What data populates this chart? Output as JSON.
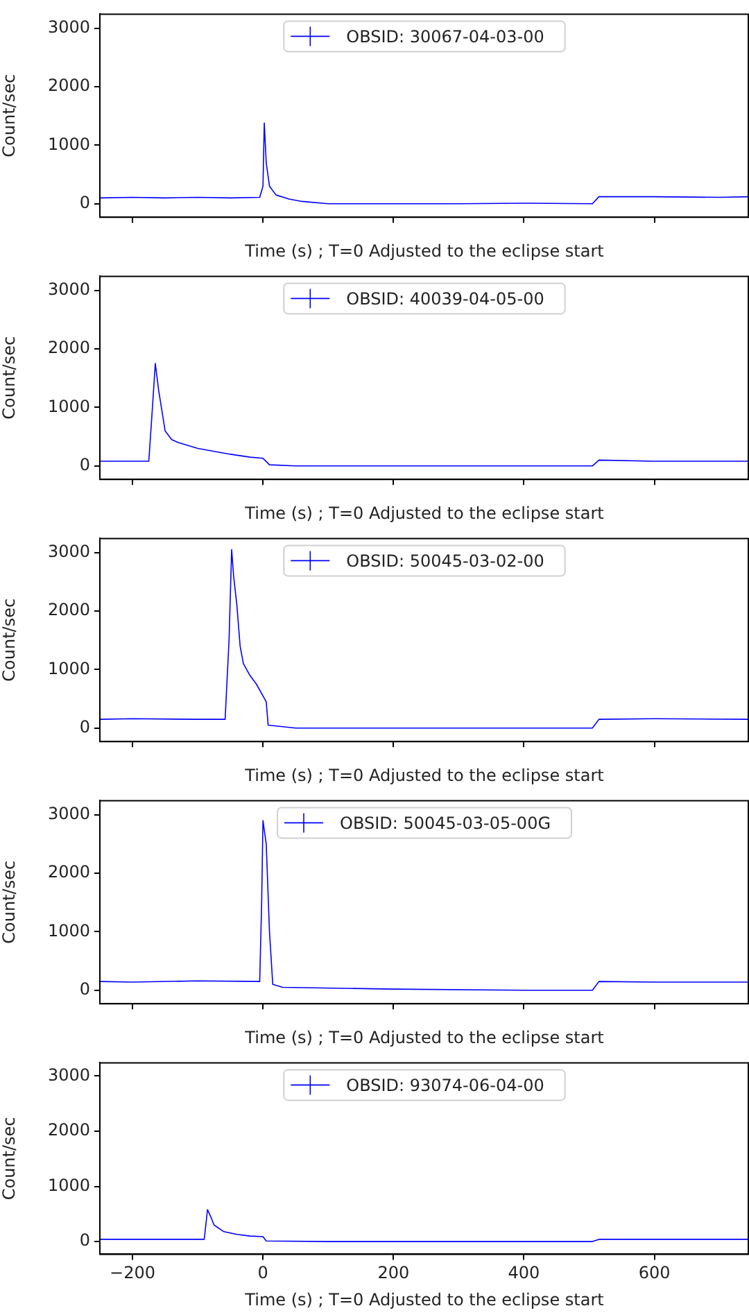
{
  "chart_data": [
    {
      "type": "line",
      "xlabel": "Time (s) ; T=0 Adjusted to the eclipse start",
      "ylabel": "Count/sec",
      "legend": "top",
      "tick_labels": "y",
      "xlim": [
        -250,
        745
      ],
      "xticks": [
        -200,
        0,
        200,
        400,
        600
      ],
      "ylim": [
        -230,
        3240
      ],
      "yticks": [
        0,
        1000,
        2000,
        3000
      ],
      "series": [
        {
          "name": "OBSID: 30067-04-03-00",
          "color": "#0000ff",
          "x": [
            -250,
            -200,
            -150,
            -100,
            -50,
            -5,
            0,
            2,
            5,
            10,
            20,
            40,
            60,
            100,
            200,
            300,
            400,
            505,
            515,
            600,
            700,
            745
          ],
          "values": [
            100,
            110,
            100,
            110,
            100,
            110,
            300,
            1380,
            700,
            300,
            150,
            80,
            40,
            0,
            0,
            0,
            10,
            0,
            120,
            120,
            110,
            120
          ]
        }
      ]
    },
    {
      "type": "line",
      "xlabel": "Time (s) ; T=0 Adjusted to the eclipse start",
      "ylabel": "Count/sec",
      "legend": "top",
      "tick_labels": "y",
      "xlim": [
        -250,
        745
      ],
      "xticks": [
        -200,
        0,
        200,
        400,
        600
      ],
      "ylim": [
        -230,
        3240
      ],
      "yticks": [
        0,
        1000,
        2000,
        3000
      ],
      "series": [
        {
          "name": "OBSID: 40039-04-05-00",
          "color": "#0000ff",
          "x": [
            -250,
            -200,
            -175,
            -170,
            -165,
            -160,
            -150,
            -140,
            -130,
            -100,
            -50,
            -20,
            0,
            10,
            50,
            200,
            400,
            505,
            515,
            600,
            745
          ],
          "values": [
            80,
            80,
            80,
            900,
            1750,
            1300,
            600,
            450,
            400,
            300,
            200,
            150,
            130,
            20,
            0,
            0,
            0,
            0,
            100,
            80,
            80
          ]
        }
      ]
    },
    {
      "type": "line",
      "xlabel": "Time (s) ; T=0 Adjusted to the eclipse start",
      "ylabel": "Count/sec",
      "legend": "top",
      "tick_labels": "y",
      "xlim": [
        -250,
        745
      ],
      "xticks": [
        -200,
        0,
        200,
        400,
        600
      ],
      "ylim": [
        -230,
        3240
      ],
      "yticks": [
        0,
        1000,
        2000,
        3000
      ],
      "series": [
        {
          "name": "OBSID: 50045-03-02-00",
          "color": "#0000ff",
          "x": [
            -250,
            -200,
            -100,
            -58,
            -52,
            -48,
            -45,
            -40,
            -35,
            -30,
            -20,
            -10,
            0,
            5,
            8,
            50,
            200,
            400,
            505,
            515,
            600,
            745
          ],
          "values": [
            150,
            160,
            150,
            150,
            1500,
            3050,
            2600,
            2100,
            1400,
            1100,
            900,
            750,
            550,
            450,
            50,
            0,
            0,
            0,
            0,
            150,
            160,
            150
          ]
        }
      ]
    },
    {
      "type": "line",
      "xlabel": "Time (s) ; T=0 Adjusted to the eclipse start",
      "ylabel": "Count/sec",
      "legend": "top",
      "tick_labels": "y",
      "xlim": [
        -250,
        745
      ],
      "xticks": [
        -200,
        0,
        200,
        400,
        600
      ],
      "ylim": [
        -230,
        3240
      ],
      "yticks": [
        0,
        1000,
        2000,
        3000
      ],
      "series": [
        {
          "name": "OBSID: 50045-03-05-00G",
          "color": "#0000ff",
          "x": [
            -250,
            -200,
            -100,
            -5,
            -2,
            0,
            5,
            10,
            15,
            30,
            200,
            400,
            505,
            515,
            600,
            745
          ],
          "values": [
            150,
            140,
            160,
            150,
            1500,
            2900,
            2500,
            1000,
            100,
            50,
            20,
            0,
            0,
            150,
            140,
            140
          ]
        }
      ]
    },
    {
      "type": "line",
      "xlabel": "Time (s) ; T=0 Adjusted to the eclipse start",
      "ylabel": "Count/sec",
      "legend": "top",
      "xlim": [
        -250,
        745
      ],
      "xticks": [
        -200,
        0,
        200,
        400,
        600
      ],
      "ylim": [
        -230,
        3240
      ],
      "yticks": [
        0,
        1000,
        2000,
        3000
      ],
      "series": [
        {
          "name": "OBSID: 93074-06-04-00",
          "color": "#0000ff",
          "x": [
            -250,
            -200,
            -100,
            -90,
            -85,
            -80,
            -75,
            -60,
            -40,
            -20,
            0,
            5,
            100,
            300,
            505,
            515,
            600,
            745
          ],
          "values": [
            40,
            40,
            40,
            40,
            580,
            450,
            300,
            180,
            130,
            100,
            90,
            10,
            0,
            0,
            0,
            40,
            40,
            40
          ]
        }
      ]
    }
  ]
}
